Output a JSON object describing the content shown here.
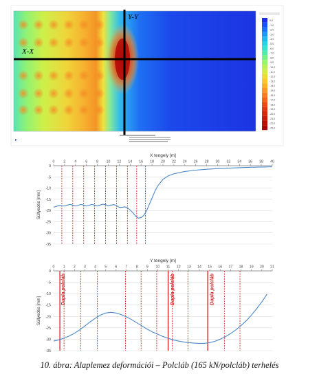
{
  "contour_plot": {
    "section_labels": {
      "x": "X-X",
      "y": "Y-Y"
    },
    "legend_values": [
      "0,0",
      "-1,0",
      "-2,0",
      "-3,0",
      "-4,0",
      "-5,0",
      "-6,0",
      "-7,0",
      "-8,0",
      "-9,0",
      "-10,0",
      "-11,0",
      "-12,0",
      "-13,0",
      "-14,0",
      "-15,0",
      "-16,0",
      "-17,0",
      "-18,0",
      "-19,0",
      "-20,0",
      "-21,0",
      "-22,0",
      "-23,0"
    ],
    "legend_colors": [
      "#1c2ee8",
      "#1750f5",
      "#1a74fb",
      "#1e98fb",
      "#22b8f3",
      "#2ad2e6",
      "#38e2cc",
      "#52ecaa",
      "#74f286",
      "#98f468",
      "#baf254",
      "#d6ec46",
      "#ecdc3a",
      "#f8c832",
      "#fcb02a",
      "#fc9624",
      "#f87e1e",
      "#f26618",
      "#ea4e14",
      "#e03a10",
      "#d42a0c",
      "#c81c0a",
      "#ba1008",
      "#ac0606"
    ]
  },
  "chart_data": [
    {
      "type": "line",
      "title": "X tengely [m]",
      "xlabel": "",
      "ylabel": "Süllyedés [mm]",
      "xlim": [
        0,
        40
      ],
      "ylim": [
        -35,
        0
      ],
      "x_ticks": [
        0,
        2,
        4,
        6,
        8,
        10,
        12,
        14,
        16,
        18,
        20,
        22,
        24,
        26,
        28,
        30,
        32,
        34,
        36,
        38,
        40
      ],
      "y_ticks": [
        0,
        -5,
        -10,
        -15,
        -20,
        -25,
        -30,
        -35
      ],
      "line_color": "#4a86c8",
      "reference_lines": [
        1.5,
        3.5,
        5.5,
        7.5,
        9.5,
        11.5,
        13.5,
        15.2,
        16.8
      ],
      "x": [
        0,
        0.5,
        1,
        1.5,
        2,
        2.5,
        3,
        3.5,
        4,
        4.5,
        5,
        5.5,
        6,
        6.5,
        7,
        7.5,
        8,
        8.5,
        9,
        9.5,
        10,
        10.5,
        11,
        11.5,
        12,
        12.5,
        13,
        13.5,
        14,
        14.5,
        15,
        15.5,
        16,
        16.5,
        17,
        17.5,
        18,
        18.5,
        19,
        20,
        21,
        22,
        24,
        26,
        28,
        30,
        32,
        34,
        36,
        38,
        40
      ],
      "y": [
        -18.5,
        -18.2,
        -17.7,
        -17.9,
        -18.0,
        -17.6,
        -17.3,
        -17.6,
        -18.0,
        -17.7,
        -17.3,
        -17.6,
        -18.0,
        -17.7,
        -17.3,
        -17.6,
        -18.0,
        -17.6,
        -17.2,
        -17.4,
        -17.9,
        -17.6,
        -17.4,
        -17.8,
        -18.6,
        -18.6,
        -18.4,
        -18.8,
        -19.8,
        -21.0,
        -22.5,
        -23.4,
        -23.2,
        -22.2,
        -20.2,
        -17.3,
        -14.5,
        -11.6,
        -9.2,
        -6.1,
        -4.5,
        -3.6,
        -2.6,
        -2.0,
        -1.6,
        -1.3,
        -1.1,
        -0.9,
        -0.7,
        -0.6,
        -0.5
      ]
    },
    {
      "type": "line",
      "title": "Y tengely [m]",
      "xlabel": "",
      "ylabel": "Süllyedés [mm]",
      "xlim": [
        0,
        21
      ],
      "ylim": [
        -35,
        0
      ],
      "x_ticks": [
        0,
        1,
        2,
        3,
        4,
        5,
        6,
        7,
        8,
        9,
        10,
        11,
        12,
        13,
        14,
        15,
        16,
        17,
        18,
        19,
        20,
        21
      ],
      "y_ticks": [
        0,
        -5,
        -10,
        -15,
        -20,
        -25,
        -30,
        -35
      ],
      "line_color": "#4a86c8",
      "reference_lines": [
        1.0,
        2.6,
        4.2,
        6.9,
        8.4,
        9.9,
        11.4,
        12.9,
        16.4,
        17.9
      ],
      "bold_reference_lines": [
        0.6,
        11.0,
        14.8
      ],
      "annotations": [
        "Dupla polcláb",
        "Dupla polcláb",
        "Dupla polcláb"
      ],
      "annotation_x": [
        0.9,
        11.4,
        15.2
      ],
      "x": [
        0,
        0.5,
        1,
        1.5,
        2,
        2.5,
        3,
        3.5,
        4,
        4.5,
        5,
        5.5,
        6,
        6.5,
        7,
        7.5,
        8,
        8.5,
        9,
        9.5,
        10,
        10.5,
        11,
        11.5,
        12,
        12.5,
        13,
        13.5,
        14,
        14.5,
        15,
        15.5,
        16,
        16.5,
        17,
        17.5,
        18,
        18.5,
        19,
        19.5,
        20,
        20.5
      ],
      "y": [
        -30.8,
        -30.3,
        -29.5,
        -28.6,
        -27.4,
        -25.9,
        -24.2,
        -22.4,
        -20.8,
        -19.4,
        -18.5,
        -18.2,
        -18.5,
        -19.2,
        -20.2,
        -21.4,
        -22.8,
        -24.2,
        -25.6,
        -26.8,
        -27.8,
        -28.8,
        -29.6,
        -30.3,
        -30.8,
        -31.2,
        -31.5,
        -31.7,
        -31.8,
        -31.8,
        -31.5,
        -30.9,
        -30.0,
        -28.9,
        -27.5,
        -25.9,
        -24.0,
        -21.9,
        -19.4,
        -16.6,
        -13.6,
        -10.2
      ]
    }
  ],
  "caption": "10. ábra: Alaplemez deformációi – Polcláb (165 kN/polcláb) terhelés"
}
